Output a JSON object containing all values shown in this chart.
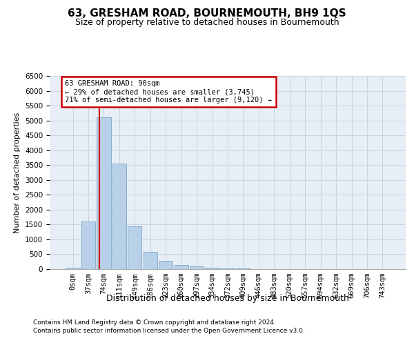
{
  "title": "63, GRESHAM ROAD, BOURNEMOUTH, BH9 1QS",
  "subtitle": "Size of property relative to detached houses in Bournemouth",
  "xlabel": "Distribution of detached houses by size in Bournemouth",
  "ylabel": "Number of detached properties",
  "footnote1": "Contains HM Land Registry data © Crown copyright and database right 2024.",
  "footnote2": "Contains public sector information licensed under the Open Government Licence v3.0.",
  "bar_labels": [
    "0sqm",
    "37sqm",
    "74sqm",
    "111sqm",
    "149sqm",
    "186sqm",
    "223sqm",
    "260sqm",
    "297sqm",
    "334sqm",
    "372sqm",
    "409sqm",
    "446sqm",
    "483sqm",
    "520sqm",
    "557sqm",
    "594sqm",
    "632sqm",
    "669sqm",
    "706sqm",
    "743sqm"
  ],
  "bar_values": [
    50,
    1600,
    5100,
    3560,
    1430,
    590,
    280,
    130,
    90,
    50,
    30,
    20,
    10,
    5,
    3,
    2,
    1,
    1,
    0,
    0,
    0
  ],
  "bar_color": "#b8d0e8",
  "bar_edge_color": "#7aaac8",
  "grid_color": "#c8d4e4",
  "background_color": "#e8eef6",
  "property_line_bin": 1.73,
  "annotation_text": "63 GRESHAM ROAD: 90sqm\n← 29% of detached houses are smaller (3,745)\n71% of semi-detached houses are larger (9,120) →",
  "annotation_box_color": "#ffffff",
  "annotation_border_color": "#cc0000",
  "red_line_color": "#cc0000",
  "ylim": [
    0,
    6500
  ],
  "yticks": [
    0,
    500,
    1000,
    1500,
    2000,
    2500,
    3000,
    3500,
    4000,
    4500,
    5000,
    5500,
    6000,
    6500
  ],
  "title_fontsize": 11,
  "subtitle_fontsize": 9
}
